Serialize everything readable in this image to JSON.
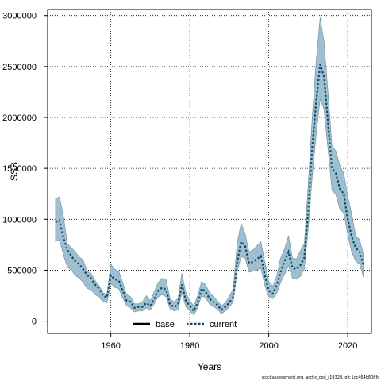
{
  "chart_data": {
    "type": "line",
    "xlabel": "Years",
    "ylabel": "SSB",
    "xlim": [
      1944,
      2026
    ],
    "ylim": [
      -120000,
      3060000
    ],
    "x_ticks": [
      1960,
      1980,
      2000,
      2020
    ],
    "y_ticks": [
      0,
      500000,
      1000000,
      1500000,
      2000000,
      2500000,
      3000000
    ],
    "x_tick_labels": [
      "1960",
      "1980",
      "2000",
      "2020"
    ],
    "y_tick_labels": [
      "0",
      "500000",
      "1000000",
      "1500000",
      "2000000",
      "2500000",
      "3000000"
    ],
    "grid": true,
    "legend_position": "bottom-left",
    "band_color": "#9fbfd0",
    "band_edge_color": "#6a8da0",
    "current_color": "#0f4d6b",
    "base_color": "#000000",
    "x": [
      1946,
      1947,
      1948,
      1949,
      1950,
      1951,
      1952,
      1953,
      1954,
      1955,
      1956,
      1957,
      1958,
      1959,
      1960,
      1961,
      1962,
      1963,
      1964,
      1965,
      1966,
      1967,
      1968,
      1969,
      1970,
      1971,
      1972,
      1973,
      1974,
      1975,
      1976,
      1977,
      1978,
      1979,
      1980,
      1981,
      1982,
      1983,
      1984,
      1985,
      1986,
      1987,
      1988,
      1989,
      1990,
      1991,
      1992,
      1993,
      1994,
      1995,
      1996,
      1997,
      1998,
      1999,
      2000,
      2001,
      2002,
      2003,
      2004,
      2005,
      2006,
      2007,
      2008,
      2009,
      2010,
      2011,
      2012,
      2013,
      2014,
      2015,
      2016,
      2017,
      2018,
      2019,
      2020,
      2021,
      2022,
      2023,
      2024
    ],
    "series": [
      {
        "name": "current",
        "values": [
          970000,
          990000,
          820000,
          700000,
          640000,
          590000,
          560000,
          510000,
          450000,
          420000,
          360000,
          320000,
          250000,
          230000,
          450000,
          410000,
          400000,
          300000,
          200000,
          190000,
          130000,
          140000,
          140000,
          180000,
          150000,
          220000,
          300000,
          330000,
          310000,
          160000,
          140000,
          160000,
          360000,
          200000,
          150000,
          100000,
          180000,
          320000,
          290000,
          220000,
          190000,
          160000,
          110000,
          140000,
          180000,
          240000,
          580000,
          780000,
          740000,
          570000,
          580000,
          610000,
          640000,
          450000,
          300000,
          270000,
          350000,
          480000,
          590000,
          680000,
          520000,
          510000,
          550000,
          620000,
          1100000,
          1700000,
          2150000,
          2520000,
          2400000,
          1950000,
          1500000,
          1450000,
          1300000,
          1250000,
          1000000,
          830000,
          720000,
          680000,
          550000
        ]
      },
      {
        "name": "base",
        "values": [
          970000,
          990000,
          820000,
          700000,
          640000,
          590000,
          560000,
          510000,
          450000,
          420000,
          360000,
          320000,
          250000,
          230000,
          450000,
          410000,
          400000,
          300000,
          200000,
          190000,
          130000,
          140000,
          140000,
          180000,
          150000,
          220000,
          300000,
          330000,
          310000,
          160000,
          140000,
          160000,
          360000,
          200000,
          150000,
          100000,
          180000,
          320000,
          290000,
          220000,
          190000,
          160000,
          110000,
          140000,
          180000,
          240000,
          580000,
          780000,
          740000,
          570000,
          580000,
          610000,
          640000,
          450000,
          300000,
          270000,
          350000,
          480000,
          590000,
          680000,
          520000,
          510000,
          550000,
          620000,
          1100000,
          1700000,
          2150000,
          2520000,
          2400000,
          1950000,
          1500000,
          1450000,
          1300000,
          1250000,
          1000000,
          830000,
          720000,
          680000,
          550000
        ]
      }
    ],
    "band_upper": [
      1200000,
      1220000,
      1030000,
      760000,
      720000,
      680000,
      630000,
      600000,
      490000,
      470000,
      400000,
      350000,
      280000,
      260000,
      560000,
      510000,
      490000,
      380000,
      260000,
      240000,
      170000,
      170000,
      190000,
      250000,
      200000,
      290000,
      380000,
      420000,
      410000,
      220000,
      190000,
      220000,
      470000,
      280000,
      200000,
      150000,
      250000,
      390000,
      360000,
      280000,
      240000,
      200000,
      150000,
      180000,
      240000,
      320000,
      770000,
      960000,
      860000,
      680000,
      700000,
      740000,
      780000,
      580000,
      390000,
      340000,
      440000,
      620000,
      710000,
      840000,
      620000,
      610000,
      690000,
      760000,
      1350000,
      2000000,
      2550000,
      2980000,
      2740000,
      2250000,
      1720000,
      1670000,
      1530000,
      1450000,
      1230000,
      1050000,
      840000,
      800000,
      650000
    ],
    "band_lower": [
      780000,
      800000,
      650000,
      530000,
      500000,
      450000,
      420000,
      380000,
      320000,
      310000,
      260000,
      240000,
      190000,
      180000,
      370000,
      330000,
      320000,
      230000,
      150000,
      130000,
      90000,
      100000,
      100000,
      130000,
      110000,
      170000,
      240000,
      260000,
      240000,
      120000,
      100000,
      110000,
      280000,
      140000,
      100000,
      60000,
      130000,
      250000,
      230000,
      170000,
      140000,
      120000,
      70000,
      100000,
      140000,
      190000,
      490000,
      630000,
      620000,
      480000,
      490000,
      500000,
      520000,
      350000,
      240000,
      220000,
      270000,
      380000,
      460000,
      540000,
      420000,
      410000,
      440000,
      510000,
      910000,
      1420000,
      1830000,
      2180000,
      2080000,
      1690000,
      1290000,
      1240000,
      1100000,
      1060000,
      850000,
      680000,
      590000,
      560000,
      430000
    ]
  },
  "footer": {
    "note": "stockassessment.org, arctic_cod_r19328, git:1cc464b806fc"
  }
}
